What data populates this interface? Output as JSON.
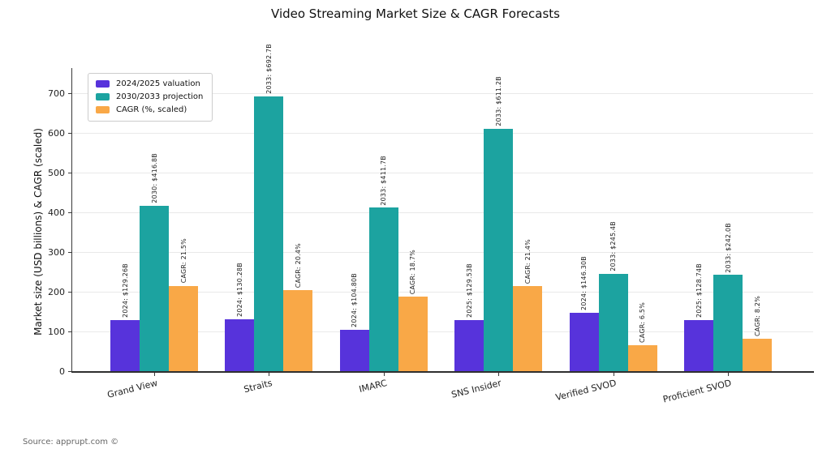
{
  "chart_data": {
    "type": "bar",
    "title": "Video Streaming Market Size & CAGR Forecasts",
    "ylabel": "Market size (USD billions) & CAGR (scaled)",
    "xlabel": "",
    "categories": [
      "Grand View",
      "Straits",
      "IMARC",
      "SNS Insider",
      "Verified SVOD",
      "Proficient SVOD"
    ],
    "series": [
      {
        "name": "2024/2025 valuation",
        "color": "#5733db",
        "values": [
          129.26,
          130.28,
          104.8,
          129.53,
          146.3,
          128.74
        ],
        "labels": [
          "2024: $129.26B",
          "2024: $130.28B",
          "2024: $104.80B",
          "2025: $129.53B",
          "2024: $146.30B",
          "2025: $128.74B"
        ]
      },
      {
        "name": "2030/2033 projection",
        "color": "#1ca3a0",
        "values": [
          416.8,
          692.7,
          411.7,
          611.2,
          245.4,
          242.0
        ],
        "labels": [
          "2030: $416.8B",
          "2033: $692.7B",
          "2033: $411.7B",
          "2033: $611.2B",
          "2033: $245.4B",
          "2033: $242.0B"
        ]
      },
      {
        "name": "CAGR (%, scaled)",
        "color": "#f9a847",
        "values": [
          215,
          204,
          187,
          214,
          65,
          82
        ],
        "cagr_percent": [
          21.5,
          20.4,
          18.7,
          21.4,
          6.5,
          8.2
        ],
        "labels": [
          "CAGR: 21.5%",
          "CAGR: 20.4%",
          "CAGR: 18.7%",
          "CAGR: 21.4%",
          "CAGR: 6.5%",
          "CAGR: 8.2%"
        ]
      }
    ],
    "yticks": [
      0,
      100,
      200,
      300,
      400,
      500,
      600,
      700
    ],
    "ylim": [
      0,
      760
    ],
    "grid": true,
    "legend_position": "upper-left",
    "source": "Source: apprupt.com ©"
  }
}
